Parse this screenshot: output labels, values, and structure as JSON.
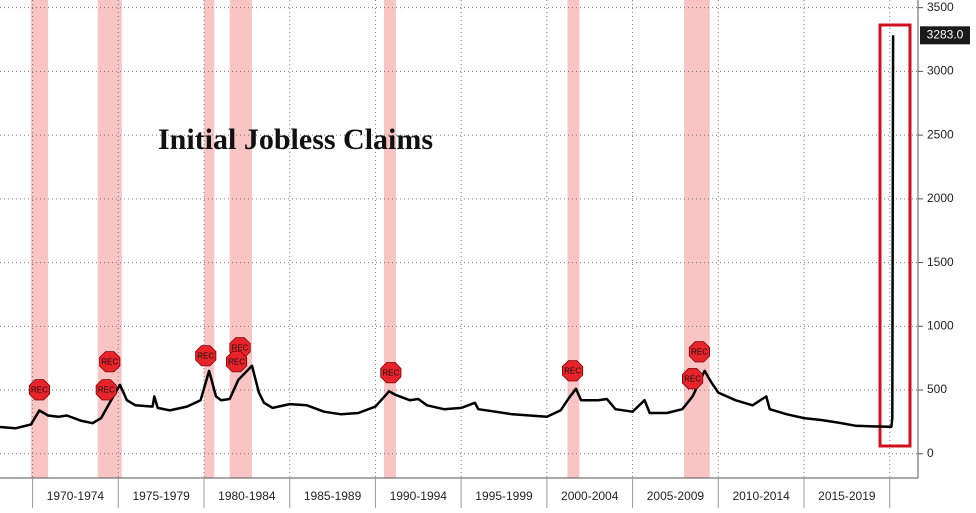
{
  "chart_data": {
    "type": "line",
    "title": "Initial Jobless Claims",
    "xlim": [
      1968.1,
      2021.65
    ],
    "ylim": [
      -190,
      3560
    ],
    "yticks": [
      0,
      500,
      1000,
      1500,
      2000,
      2500,
      3000,
      3500
    ],
    "xgrid": [
      1970,
      1975,
      1980,
      1985,
      1990,
      1995,
      2000,
      2005,
      2010,
      2015,
      2020
    ],
    "xticks": [
      {
        "value": 1972.5,
        "label": "1970-1974"
      },
      {
        "value": 1977.5,
        "label": "1975-1979"
      },
      {
        "value": 1982.5,
        "label": "1980-1984"
      },
      {
        "value": 1987.5,
        "label": "1985-1989"
      },
      {
        "value": 1992.5,
        "label": "1990-1994"
      },
      {
        "value": 1997.5,
        "label": "1995-1999"
      },
      {
        "value": 2002.5,
        "label": "2000-2004"
      },
      {
        "value": 2007.5,
        "label": "2005-2009"
      },
      {
        "value": 2012.5,
        "label": "2010-2014"
      },
      {
        "value": 2017.5,
        "label": "2015-2019"
      }
    ],
    "grid": true,
    "series": [
      {
        "color": "#000000",
        "x": [
          1968.1,
          1969,
          1969.9,
          1970.4,
          1970.9,
          1971.5,
          1972,
          1972.8,
          1973.5,
          1974,
          1974.5,
          1975.1,
          1975.5,
          1976,
          1977,
          1977.1,
          1977.3,
          1978,
          1979,
          1979.8,
          1980.3,
          1980.7,
          1981,
          1981.5,
          1982,
          1982.8,
          1983.2,
          1983.5,
          1984,
          1985,
          1986,
          1987,
          1988,
          1989,
          1990,
          1990.8,
          1991.2,
          1992,
          1992.5,
          1993,
          1994,
          1995,
          1995.8,
          1996,
          1997,
          1998,
          1999,
          2000,
          2000.8,
          2001.3,
          2001.7,
          2002,
          2003,
          2003.5,
          2004,
          2005,
          2005.7,
          2006,
          2007,
          2007.9,
          2008.5,
          2009.2,
          2009.6,
          2010,
          2011,
          2012,
          2012.8,
          2013,
          2014,
          2015,
          2016,
          2017,
          2018,
          2019,
          2020.1,
          2020.15,
          2020.2
        ],
        "values": [
          210,
          200,
          230,
          340,
          300,
          290,
          300,
          260,
          240,
          280,
          400,
          540,
          420,
          380,
          370,
          450,
          360,
          340,
          370,
          420,
          650,
          450,
          420,
          430,
          580,
          690,
          480,
          400,
          360,
          390,
          380,
          330,
          310,
          320,
          370,
          490,
          460,
          420,
          430,
          380,
          350,
          360,
          400,
          350,
          330,
          310,
          300,
          290,
          340,
          440,
          510,
          420,
          420,
          430,
          350,
          330,
          420,
          320,
          320,
          350,
          450,
          650,
          560,
          480,
          420,
          380,
          450,
          350,
          310,
          280,
          265,
          245,
          220,
          215,
          212,
          281,
          3283
        ]
      }
    ],
    "last_label": {
      "value": 3283,
      "label": "3283.0"
    },
    "recessions": [
      {
        "start": 1969.9,
        "end": 1970.9
      },
      {
        "start": 1973.8,
        "end": 1975.2
      },
      {
        "start": 1980.0,
        "end": 1980.6
      },
      {
        "start": 1981.5,
        "end": 1982.8
      },
      {
        "start": 1990.5,
        "end": 1991.2
      },
      {
        "start": 2001.2,
        "end": 2001.9
      },
      {
        "start": 2008.0,
        "end": 2009.5
      }
    ],
    "markers": [
      {
        "x": 1970.4,
        "y": 502,
        "label": "REC"
      },
      {
        "x": 1974.5,
        "y": 722,
        "label": "REC"
      },
      {
        "x": 1974.3,
        "y": 502,
        "label": "REC"
      },
      {
        "x": 1980.1,
        "y": 769,
        "label": "REC"
      },
      {
        "x": 1982.1,
        "y": 832,
        "label": "REC"
      },
      {
        "x": 1981.9,
        "y": 722,
        "label": "REC"
      },
      {
        "x": 1990.9,
        "y": 636,
        "label": "REC"
      },
      {
        "x": 2001.5,
        "y": 651,
        "label": "REC"
      },
      {
        "x": 2008.9,
        "y": 800,
        "label": "REC"
      },
      {
        "x": 2008.5,
        "y": 589,
        "label": "REC"
      }
    ]
  }
}
